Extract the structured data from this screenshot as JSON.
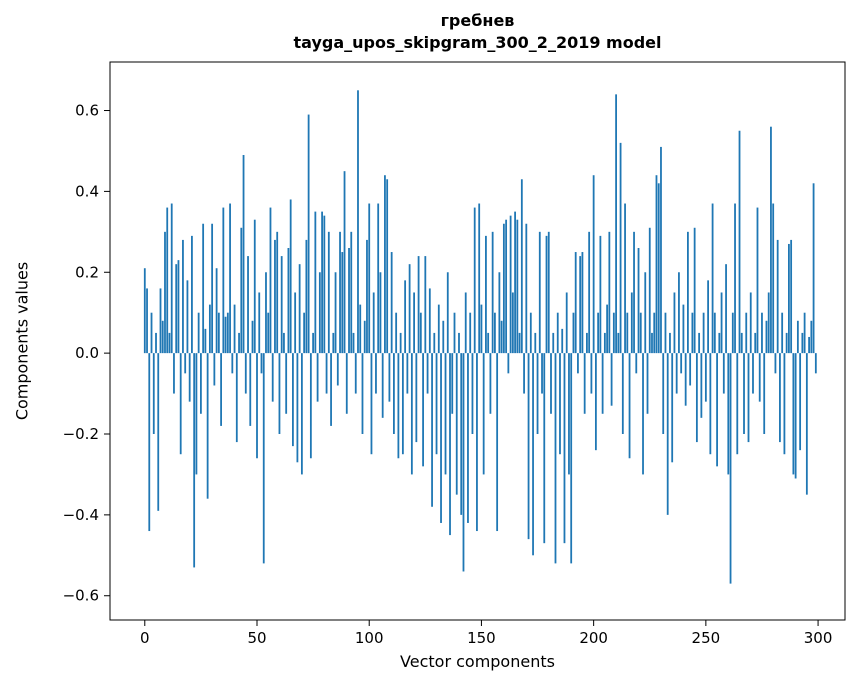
{
  "chart_data": {
    "type": "bar",
    "title_line1": "гребнев",
    "title_line2": "tayga_upos_skipgram_300_2_2019 model",
    "xlabel": "Vector components",
    "ylabel": "Components values",
    "bar_color": "#1f77b4",
    "axis_color": "#000000",
    "xlim": [
      -15.5,
      312
    ],
    "ylim": [
      -0.66,
      0.72
    ],
    "xticks": [
      0,
      50,
      100,
      150,
      200,
      250,
      300
    ],
    "yticks": [
      -0.6,
      -0.4,
      -0.2,
      0.0,
      0.2,
      0.4,
      0.6
    ],
    "legend": null,
    "grid": false,
    "values": [
      0.21,
      0.16,
      -0.44,
      0.1,
      -0.2,
      0.05,
      -0.39,
      0.16,
      0.08,
      0.3,
      0.36,
      0.05,
      0.37,
      -0.1,
      0.22,
      0.23,
      -0.25,
      0.28,
      -0.05,
      0.18,
      -0.12,
      0.29,
      -0.53,
      -0.3,
      0.1,
      -0.15,
      0.32,
      0.06,
      -0.36,
      0.12,
      0.32,
      -0.08,
      0.21,
      0.1,
      -0.18,
      0.36,
      0.09,
      0.1,
      0.37,
      -0.05,
      0.12,
      -0.22,
      0.05,
      0.31,
      0.49,
      -0.1,
      0.24,
      -0.18,
      0.08,
      0.33,
      -0.26,
      0.15,
      -0.05,
      -0.52,
      0.2,
      0.1,
      0.36,
      -0.12,
      0.28,
      0.3,
      -0.2,
      0.24,
      0.05,
      -0.15,
      0.26,
      0.38,
      -0.23,
      0.15,
      -0.27,
      0.22,
      -0.3,
      0.1,
      0.28,
      0.59,
      -0.26,
      0.05,
      0.35,
      -0.12,
      0.2,
      0.35,
      0.34,
      -0.1,
      0.3,
      -0.18,
      0.05,
      0.2,
      -0.08,
      0.3,
      0.25,
      0.45,
      -0.15,
      0.26,
      0.3,
      0.05,
      -0.1,
      0.65,
      0.12,
      -0.2,
      0.08,
      0.28,
      0.37,
      -0.25,
      0.15,
      -0.1,
      0.37,
      0.2,
      -0.16,
      0.44,
      0.43,
      -0.12,
      0.25,
      -0.2,
      0.1,
      -0.26,
      0.05,
      -0.25,
      0.18,
      -0.1,
      0.22,
      -0.3,
      0.15,
      -0.22,
      0.24,
      0.1,
      -0.28,
      0.24,
      -0.1,
      0.16,
      -0.38,
      0.05,
      -0.25,
      0.12,
      -0.42,
      0.08,
      -0.3,
      0.2,
      -0.45,
      -0.15,
      0.1,
      -0.35,
      0.05,
      -0.4,
      -0.54,
      0.15,
      -0.42,
      0.1,
      -0.2,
      0.36,
      -0.44,
      0.37,
      0.12,
      -0.3,
      0.29,
      0.05,
      -0.15,
      0.3,
      0.1,
      -0.44,
      0.2,
      0.08,
      0.32,
      0.33,
      -0.05,
      0.34,
      0.15,
      0.35,
      0.33,
      0.05,
      0.43,
      -0.1,
      0.32,
      -0.46,
      0.1,
      -0.5,
      0.05,
      -0.2,
      0.3,
      -0.1,
      -0.47,
      0.29,
      0.3,
      -0.15,
      0.05,
      -0.52,
      0.1,
      -0.25,
      0.06,
      -0.47,
      0.15,
      -0.3,
      -0.52,
      0.1,
      0.25,
      -0.05,
      0.24,
      0.25,
      -0.15,
      0.05,
      0.3,
      -0.1,
      0.44,
      -0.24,
      0.1,
      0.29,
      -0.15,
      0.05,
      0.12,
      0.3,
      -0.13,
      0.1,
      0.64,
      0.05,
      0.52,
      -0.2,
      0.37,
      0.1,
      -0.26,
      0.15,
      0.3,
      -0.05,
      0.26,
      0.1,
      -0.3,
      0.2,
      -0.15,
      0.31,
      0.05,
      0.1,
      0.44,
      0.42,
      0.51,
      -0.2,
      0.1,
      -0.4,
      0.05,
      -0.27,
      0.15,
      -0.1,
      0.2,
      -0.05,
      0.12,
      -0.13,
      0.3,
      -0.08,
      0.1,
      0.31,
      -0.22,
      0.05,
      -0.16,
      0.1,
      -0.12,
      0.18,
      -0.25,
      0.37,
      0.1,
      -0.28,
      0.05,
      0.15,
      -0.1,
      0.22,
      -0.3,
      -0.57,
      0.1,
      0.37,
      -0.25,
      0.55,
      0.05,
      -0.2,
      0.1,
      -0.22,
      0.15,
      -0.1,
      0.05,
      0.36,
      -0.12,
      0.1,
      -0.2,
      0.08,
      0.15,
      0.56,
      0.37,
      -0.05,
      0.28,
      -0.22,
      0.1,
      -0.25,
      0.05,
      0.27,
      0.28,
      -0.3,
      -0.31,
      0.08,
      -0.24,
      0.05,
      0.1,
      -0.35,
      0.04,
      0.08,
      0.42,
      -0.05
    ]
  }
}
